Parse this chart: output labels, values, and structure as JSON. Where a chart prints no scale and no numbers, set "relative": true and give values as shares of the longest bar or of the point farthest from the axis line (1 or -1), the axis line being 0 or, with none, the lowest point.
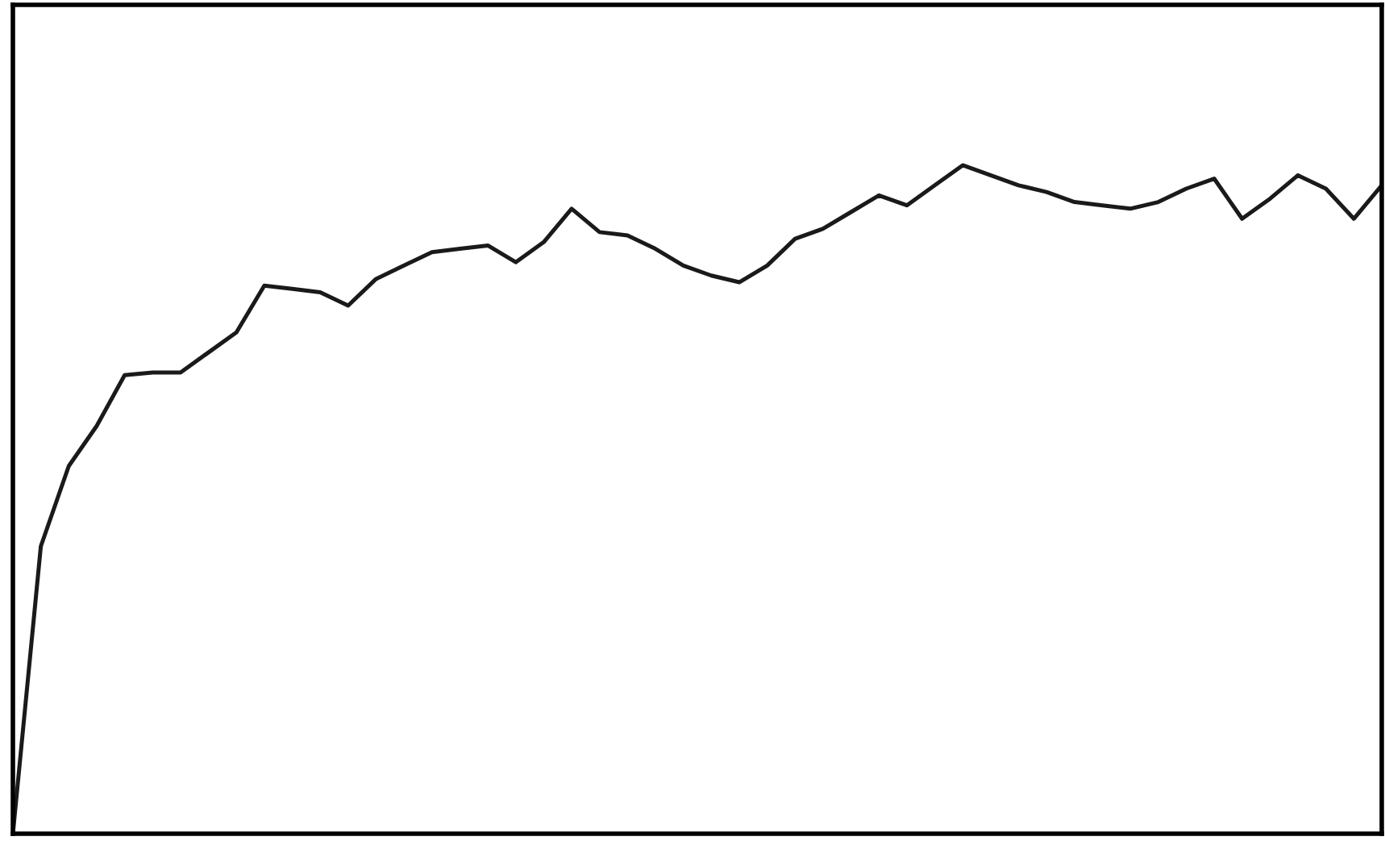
{
  "chart_data": {
    "type": "line",
    "relative": true,
    "color": "#1a1a1a",
    "legend": false,
    "categories": [
      null,
      null,
      null,
      null,
      null,
      null,
      null,
      null,
      null,
      null,
      null,
      null,
      null,
      null,
      null,
      null,
      null,
      null,
      null,
      null,
      null,
      null,
      null,
      null,
      null,
      null,
      null,
      null,
      null,
      null,
      null,
      null,
      null,
      null,
      null,
      null,
      null,
      null,
      null,
      null,
      null,
      null,
      null,
      null,
      null,
      null,
      null,
      null,
      null,
      null
    ],
    "values": [
      0,
      0.43,
      0.55,
      0.61,
      0.686,
      0.69,
      0.69,
      0.72,
      0.75,
      0.82,
      0.815,
      0.81,
      0.79,
      0.83,
      0.85,
      0.87,
      0.875,
      0.88,
      0.855,
      0.885,
      0.935,
      0.9,
      0.895,
      0.875,
      0.85,
      0.835,
      0.825,
      0.85,
      0.89,
      0.905,
      0.93,
      0.955,
      0.94,
      0.97,
      1.0,
      0.985,
      0.97,
      0.96,
      0.945,
      0.94,
      0.935,
      0.945,
      0.965,
      0.98,
      0.92,
      0.95,
      0.985,
      0.965,
      0.92,
      0.97
    ]
  }
}
